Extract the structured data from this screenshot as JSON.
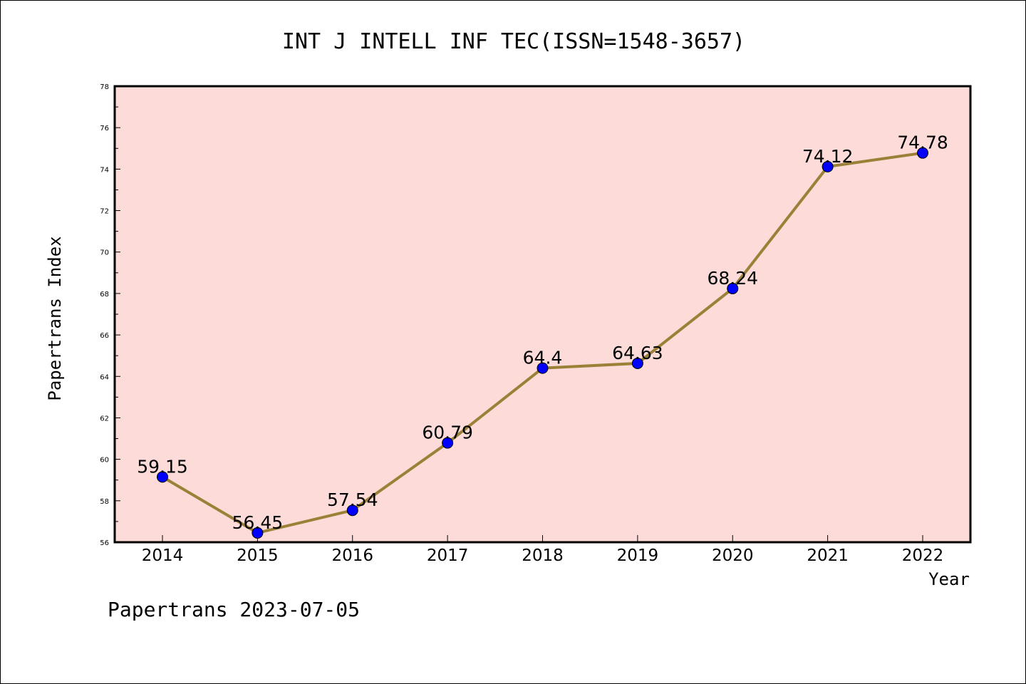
{
  "chart_data": {
    "type": "line",
    "title": "INT J INTELL INF TEC(ISSN=1548-3657)",
    "xlabel": "Year",
    "ylabel": "Papertrans Index",
    "categories": [
      "2014",
      "2015",
      "2016",
      "2017",
      "2018",
      "2019",
      "2020",
      "2021",
      "2022"
    ],
    "series": [
      {
        "values": [
          59.15,
          56.45,
          57.54,
          60.79,
          64.4,
          64.63,
          68.24,
          74.12,
          74.78
        ],
        "labels": [
          "59.15",
          "56.45",
          "57.54",
          "60.79",
          "64.4",
          "64.63",
          "68.24",
          "74.12",
          "74.78"
        ]
      }
    ],
    "ylim": [
      56,
      78
    ],
    "yticks": [
      "56",
      "58",
      "60",
      "62",
      "64",
      "66",
      "68",
      "70",
      "72",
      "74",
      "76",
      "78"
    ],
    "grid": false,
    "colors": {
      "background": "#fddbd8",
      "line": "#9b8138",
      "marker": "#0000ff"
    }
  },
  "footer": {
    "text": "Papertrans 2023-07-05"
  }
}
